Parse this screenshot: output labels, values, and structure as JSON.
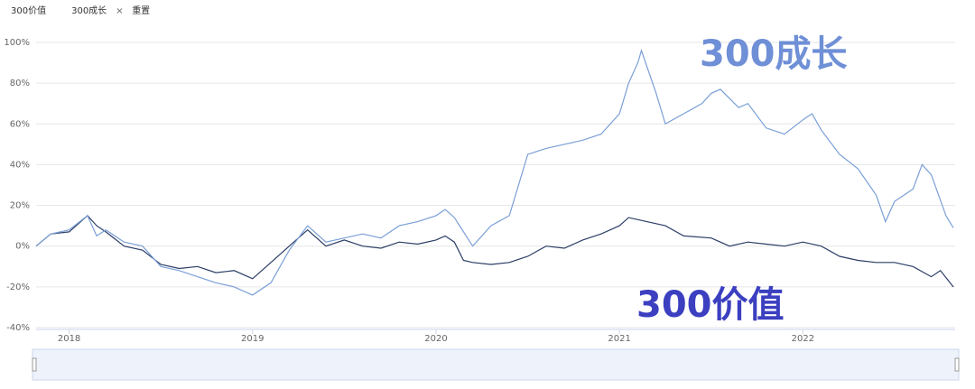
{
  "chart_data": {
    "type": "line",
    "legend_controls": {
      "close": "×",
      "reset": "重置"
    },
    "annotations": [
      "300成长",
      "300价值"
    ],
    "xlim": [
      2017.82,
      2022.83
    ],
    "xticks": [
      2018,
      2019,
      2020,
      2021,
      2022
    ],
    "ylim": [
      -40,
      100
    ],
    "yticks": [
      {
        "value": -40,
        "label": "-40%"
      },
      {
        "value": -20,
        "label": "-20%"
      },
      {
        "value": 0,
        "label": "0%"
      },
      {
        "value": 20,
        "label": "20%"
      },
      {
        "value": 40,
        "label": "40%"
      },
      {
        "value": 60,
        "label": "60%"
      },
      {
        "value": 80,
        "label": "80%"
      },
      {
        "value": 100,
        "label": "100%"
      }
    ],
    "grid": true,
    "series": [
      {
        "name": "300价值",
        "color": "#2b3d66",
        "x": [
          2017.82,
          2017.9,
          2018.0,
          2018.1,
          2018.15,
          2018.2,
          2018.3,
          2018.4,
          2018.5,
          2018.6,
          2018.7,
          2018.8,
          2018.9,
          2019.0,
          2019.1,
          2019.2,
          2019.3,
          2019.4,
          2019.5,
          2019.6,
          2019.7,
          2019.8,
          2019.9,
          2020.0,
          2020.05,
          2020.1,
          2020.15,
          2020.2,
          2020.3,
          2020.4,
          2020.5,
          2020.6,
          2020.7,
          2020.8,
          2020.9,
          2021.0,
          2021.05,
          2021.15,
          2021.25,
          2021.35,
          2021.5,
          2021.6,
          2021.7,
          2021.8,
          2021.9,
          2022.0,
          2022.1,
          2022.2,
          2022.3,
          2022.4,
          2022.5,
          2022.6,
          2022.7,
          2022.75,
          2022.82
        ],
        "values": [
          0,
          6,
          7,
          15,
          10,
          7,
          0,
          -2,
          -9,
          -11,
          -10,
          -13,
          -12,
          -16,
          -8,
          0,
          8,
          0,
          3,
          0,
          -1,
          2,
          1,
          3,
          5,
          2,
          -7,
          -8,
          -9,
          -8,
          -5,
          0,
          -1,
          3,
          6,
          10,
          14,
          12,
          10,
          5,
          4,
          0,
          2,
          1,
          0,
          2,
          0,
          -5,
          -7,
          -8,
          -8,
          -10,
          -15,
          -12,
          -20
        ]
      },
      {
        "name": "300成长",
        "color": "#7a9fd6",
        "x": [
          2017.82,
          2017.9,
          2018.0,
          2018.1,
          2018.15,
          2018.2,
          2018.3,
          2018.4,
          2018.5,
          2018.6,
          2018.7,
          2018.8,
          2018.9,
          2019.0,
          2019.1,
          2019.2,
          2019.3,
          2019.4,
          2019.5,
          2019.6,
          2019.7,
          2019.8,
          2019.9,
          2020.0,
          2020.05,
          2020.1,
          2020.2,
          2020.3,
          2020.4,
          2020.5,
          2020.6,
          2020.7,
          2020.8,
          2020.9,
          2021.0,
          2021.05,
          2021.1,
          2021.12,
          2021.2,
          2021.25,
          2021.35,
          2021.45,
          2021.5,
          2021.55,
          2021.65,
          2021.7,
          2021.8,
          2021.9,
          2022.0,
          2022.05,
          2022.1,
          2022.2,
          2022.3,
          2022.4,
          2022.45,
          2022.5,
          2022.6,
          2022.65,
          2022.7,
          2022.78,
          2022.82
        ],
        "values": [
          0,
          6,
          8,
          15,
          5,
          8,
          2,
          0,
          -10,
          -12,
          -15,
          -18,
          -20,
          -24,
          -18,
          -2,
          10,
          2,
          4,
          6,
          4,
          10,
          12,
          15,
          18,
          14,
          0,
          10,
          15,
          45,
          48,
          50,
          52,
          55,
          65,
          80,
          90,
          96,
          75,
          60,
          65,
          70,
          75,
          77,
          68,
          70,
          58,
          55,
          62,
          65,
          57,
          45,
          38,
          25,
          12,
          22,
          28,
          40,
          35,
          15,
          9
        ]
      }
    ]
  }
}
